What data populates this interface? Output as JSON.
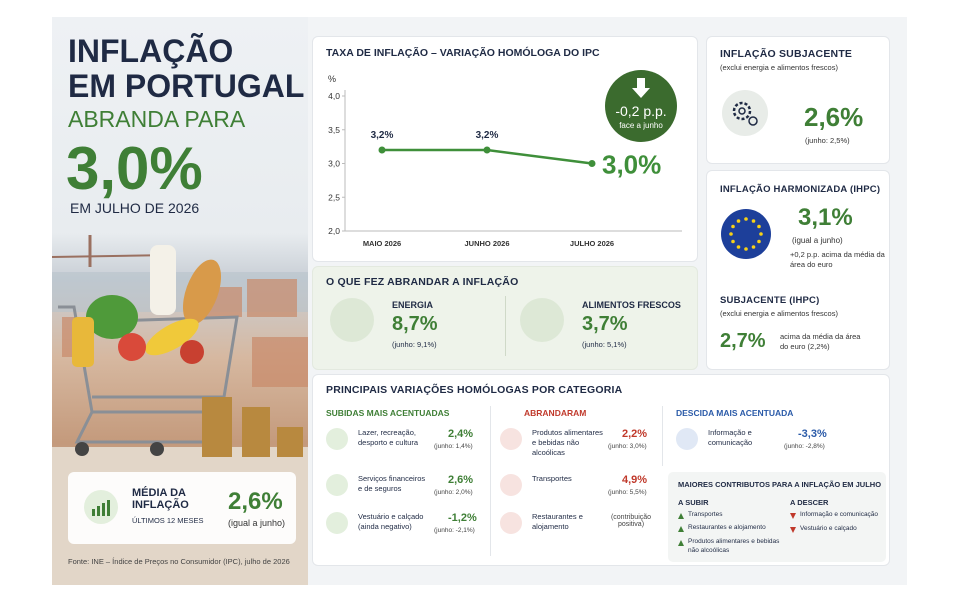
{
  "header": {
    "title_line1": "INFLAÇÃO",
    "title_line2": "EM PORTUGAL",
    "subtitle": "ABRANDA PARA",
    "headline_value": "3,0%",
    "period": "EM JULHO DE 2026"
  },
  "average": {
    "label": "MÉDIA DA INFLAÇÃO",
    "sublabel": "ÚLTIMOS 12 MESES",
    "value": "2,6%",
    "note": "(igual a junho)"
  },
  "source": "Fonte: INE – Índice de Preços no Consumidor (IPC), julho de 2026",
  "chart_data": {
    "type": "line",
    "title": "TAXA DE INFLAÇÃO – VARIAÇÃO HOMÓLOGA DO IPC",
    "y_unit": "%",
    "categories": [
      "MAIO 2026",
      "JUNHO 2026",
      "JULHO 2026"
    ],
    "series": [
      {
        "color": "#3f8f3a",
        "values": [
          3.2,
          3.2,
          3.0
        ],
        "value_labels": [
          "3,2%",
          "3,2%",
          "3,0%"
        ]
      }
    ],
    "ylim": [
      2.0,
      4.0
    ],
    "yticks": [
      {
        "value": 2.0,
        "label": "2,0"
      },
      {
        "value": 2.5,
        "label": "2,5"
      },
      {
        "value": 3.0,
        "label": "3,0"
      },
      {
        "value": 3.5,
        "label": "3,5"
      },
      {
        "value": 4.0,
        "label": "4,0"
      }
    ],
    "grid": false,
    "callout": {
      "value": "-0,2 p.p.",
      "note": "face a junho"
    }
  },
  "slowdown": {
    "title": "O QUE FEZ ABRANDAR A INFLAÇÃO",
    "items": [
      {
        "label": "ENERGIA",
        "value": "8,7%",
        "previous": "(junho: 9,1%)"
      },
      {
        "label": "ALIMENTOS FRESCOS",
        "value": "3,7%",
        "previous": "(junho: 5,1%)"
      }
    ]
  },
  "core": {
    "title": "INFLAÇÃO SUBJACENTE",
    "subtitle": "(exclui energia e alimentos frescos)",
    "value": "2,6%",
    "previous": "(junho: 2,5%)"
  },
  "hicp": {
    "title": "INFLAÇÃO HARMONIZADA (IHPC)",
    "value": "3,1%",
    "note": "(igual a junho)",
    "comparison": "+0,2 p.p. acima da média da área do euro",
    "core_title": "SUBJACENTE (IHPC)",
    "core_subtitle": "(exclui energia e alimentos frescos)",
    "core_value": "2,7%",
    "core_note": "acima da média da área do euro (2,2%)"
  },
  "categories": {
    "title": "PRINCIPAIS VARIAÇÕES HOMÓLOGAS POR CATEGORIA",
    "columns": [
      {
        "title": "SUBIDAS MAIS ACENTUADAS",
        "items": [
          {
            "label": "Lazer, recreação, desporto e cultura",
            "value": "2,4%",
            "previous": "(junho: 1,4%)"
          },
          {
            "label": "Serviços financeiros e de seguros",
            "value": "2,6%",
            "previous": "(junho: 2,0%)"
          },
          {
            "label": "Vestuário e calçado (ainda negativo)",
            "value": "-1,2%",
            "previous": "(junho: -2,1%)"
          }
        ]
      },
      {
        "title": "ABRANDARAM",
        "items": [
          {
            "label": "Produtos alimentares e bebidas não alcoólicas",
            "value": "2,2%",
            "previous": "(junho: 3,0%)"
          },
          {
            "label": "Transportes",
            "value": "4,9%",
            "previous": "(junho: 5,5%)"
          },
          {
            "label": "Restaurantes e alojamento",
            "note": "(contribuição positiva)"
          }
        ]
      },
      {
        "title": "DESCIDA MAIS ACENTUADA",
        "items": [
          {
            "label": "Informação e comunicação",
            "value": "-3,3%",
            "previous": "(junho: -2,8%)"
          }
        ]
      }
    ],
    "contributions": {
      "title": "MAIORES CONTRIBUTOS PARA A INFLAÇÃO EM JULHO",
      "up_title": "A SUBIR",
      "up": [
        "Transportes",
        "Restaurantes e alojamento",
        "Produtos alimentares e bebidas não alcoólicas"
      ],
      "down_title": "A DESCER",
      "down": [
        "Informação e comunicação",
        "Vestuário e calçado"
      ]
    }
  }
}
